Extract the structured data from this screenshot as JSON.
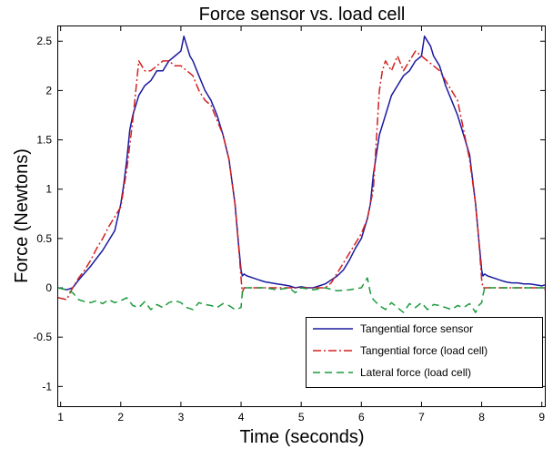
{
  "chart_data": {
    "type": "line",
    "title": "Force sensor vs. load cell",
    "xlabel": "Time (seconds)",
    "ylabel": "Force (Newtons)",
    "xlim": [
      0.96,
      9.05
    ],
    "ylim": [
      -1.2,
      2.65
    ],
    "xticks": [
      1,
      2,
      3,
      4,
      5,
      6,
      7,
      8,
      9
    ],
    "yticks": [
      -1,
      -0.5,
      0,
      0.5,
      1,
      1.5,
      2,
      2.5
    ],
    "ytick_labels": [
      "-1",
      "-0.5",
      "0",
      "0.5",
      "1",
      "1.5",
      "2",
      "2.5"
    ],
    "grid": false,
    "legend_position": "bottom-right",
    "series": [
      {
        "name": "Tangential force sensor",
        "color": "#1a1aa0",
        "style": "solid",
        "x": [
          0.96,
          1.1,
          1.2,
          1.3,
          1.4,
          1.5,
          1.6,
          1.7,
          1.8,
          1.9,
          2.0,
          2.05,
          2.1,
          2.15,
          2.2,
          2.3,
          2.4,
          2.5,
          2.6,
          2.7,
          2.8,
          2.9,
          3.0,
          3.05,
          3.1,
          3.15,
          3.2,
          3.3,
          3.4,
          3.5,
          3.6,
          3.7,
          3.8,
          3.9,
          3.95,
          4.0,
          4.02,
          4.05,
          4.1,
          4.2,
          4.3,
          4.4,
          4.5,
          4.6,
          4.7,
          4.8,
          4.9,
          5.0,
          5.1,
          5.2,
          5.3,
          5.4,
          5.5,
          5.6,
          5.7,
          5.8,
          5.9,
          6.0,
          6.1,
          6.15,
          6.2,
          6.3,
          6.4,
          6.5,
          6.6,
          6.7,
          6.8,
          6.9,
          7.0,
          7.05,
          7.1,
          7.15,
          7.2,
          7.3,
          7.4,
          7.5,
          7.6,
          7.7,
          7.8,
          7.9,
          7.95,
          8.0,
          8.02,
          8.05,
          8.1,
          8.2,
          8.3,
          8.4,
          8.5,
          8.6,
          8.7,
          8.8,
          8.9,
          9.0,
          9.05
        ],
        "y": [
          0.0,
          -0.02,
          0.0,
          0.08,
          0.15,
          0.22,
          0.3,
          0.38,
          0.48,
          0.58,
          0.85,
          1.05,
          1.3,
          1.6,
          1.75,
          1.95,
          2.05,
          2.1,
          2.2,
          2.2,
          2.3,
          2.35,
          2.4,
          2.55,
          2.45,
          2.35,
          2.3,
          2.15,
          2.0,
          1.9,
          1.75,
          1.55,
          1.3,
          0.85,
          0.5,
          0.18,
          0.12,
          0.14,
          0.12,
          0.1,
          0.08,
          0.06,
          0.05,
          0.04,
          0.03,
          0.02,
          0.0,
          0.01,
          0.0,
          0.0,
          0.02,
          0.04,
          0.08,
          0.12,
          0.18,
          0.28,
          0.4,
          0.5,
          0.7,
          0.85,
          1.15,
          1.55,
          1.75,
          1.95,
          2.05,
          2.15,
          2.2,
          2.3,
          2.35,
          2.55,
          2.5,
          2.45,
          2.35,
          2.25,
          2.05,
          1.9,
          1.75,
          1.55,
          1.35,
          0.85,
          0.5,
          0.18,
          0.12,
          0.14,
          0.12,
          0.1,
          0.08,
          0.06,
          0.05,
          0.05,
          0.04,
          0.04,
          0.03,
          0.02,
          0.03
        ]
      },
      {
        "name": "Tangential force (load cell)",
        "color": "#d42020",
        "style": "dashdot",
        "x": [
          0.96,
          1.1,
          1.2,
          1.3,
          1.4,
          1.5,
          1.6,
          1.7,
          1.8,
          1.9,
          2.0,
          2.1,
          2.2,
          2.25,
          2.3,
          2.35,
          2.4,
          2.5,
          2.6,
          2.7,
          2.8,
          2.9,
          3.0,
          3.1,
          3.2,
          3.3,
          3.4,
          3.5,
          3.6,
          3.7,
          3.8,
          3.9,
          3.95,
          4.0,
          4.02,
          4.05,
          4.1,
          4.3,
          4.5,
          4.7,
          4.9,
          5.0,
          5.2,
          5.4,
          5.5,
          5.6,
          5.7,
          5.8,
          5.9,
          6.0,
          6.1,
          6.2,
          6.25,
          6.3,
          6.35,
          6.4,
          6.5,
          6.6,
          6.7,
          6.8,
          6.9,
          7.0,
          7.1,
          7.2,
          7.3,
          7.4,
          7.5,
          7.6,
          7.7,
          7.8,
          7.9,
          7.95,
          8.0,
          8.02,
          8.05,
          8.2,
          8.4,
          8.6,
          8.8,
          9.0,
          9.05
        ],
        "y": [
          -0.1,
          -0.12,
          0.0,
          0.1,
          0.18,
          0.28,
          0.4,
          0.5,
          0.62,
          0.72,
          0.82,
          1.2,
          1.7,
          2.0,
          2.3,
          2.25,
          2.2,
          2.2,
          2.25,
          2.3,
          2.3,
          2.25,
          2.25,
          2.2,
          2.15,
          2.0,
          1.9,
          1.85,
          1.7,
          1.55,
          1.3,
          0.85,
          0.5,
          0.1,
          -0.05,
          0.0,
          0.0,
          0.0,
          0.0,
          0.0,
          0.0,
          0.0,
          0.0,
          0.0,
          0.05,
          0.15,
          0.25,
          0.35,
          0.45,
          0.55,
          0.7,
          1.0,
          1.5,
          2.0,
          2.2,
          2.3,
          2.2,
          2.35,
          2.2,
          2.3,
          2.4,
          2.35,
          2.3,
          2.25,
          2.2,
          2.1,
          2.0,
          1.9,
          1.6,
          1.3,
          0.85,
          0.5,
          0.08,
          0.0,
          0.0,
          0.0,
          0.0,
          0.0,
          0.0,
          0.0,
          -0.02
        ]
      },
      {
        "name": "Lateral force (load cell)",
        "color": "#1a9a3a",
        "style": "dashed",
        "x": [
          0.96,
          1.1,
          1.2,
          1.3,
          1.4,
          1.5,
          1.6,
          1.7,
          1.8,
          1.9,
          2.0,
          2.1,
          2.2,
          2.3,
          2.4,
          2.5,
          2.6,
          2.7,
          2.8,
          2.9,
          3.0,
          3.1,
          3.2,
          3.3,
          3.4,
          3.5,
          3.6,
          3.7,
          3.8,
          3.9,
          4.0,
          4.02,
          4.05,
          4.2,
          4.4,
          4.6,
          4.8,
          4.9,
          5.0,
          5.2,
          5.4,
          5.6,
          5.8,
          6.0,
          6.1,
          6.15,
          6.2,
          6.3,
          6.4,
          6.5,
          6.6,
          6.7,
          6.8,
          6.9,
          7.0,
          7.1,
          7.2,
          7.3,
          7.4,
          7.5,
          7.6,
          7.7,
          7.8,
          7.9,
          7.95,
          8.0,
          8.02,
          8.05,
          8.2,
          8.4,
          8.6,
          8.8,
          9.0,
          9.05
        ],
        "y": [
          0.0,
          -0.02,
          -0.05,
          -0.12,
          -0.14,
          -0.15,
          -0.13,
          -0.16,
          -0.12,
          -0.15,
          -0.13,
          -0.1,
          -0.18,
          -0.2,
          -0.14,
          -0.22,
          -0.17,
          -0.2,
          -0.15,
          -0.13,
          -0.15,
          -0.2,
          -0.22,
          -0.15,
          -0.17,
          -0.18,
          -0.2,
          -0.16,
          -0.18,
          -0.22,
          -0.2,
          -0.05,
          0.0,
          0.0,
          0.0,
          -0.02,
          0.0,
          -0.05,
          0.0,
          -0.02,
          0.0,
          -0.03,
          -0.02,
          0.0,
          0.1,
          -0.05,
          -0.12,
          -0.18,
          -0.22,
          -0.15,
          -0.2,
          -0.25,
          -0.16,
          -0.2,
          -0.15,
          -0.22,
          -0.17,
          -0.18,
          -0.2,
          -0.22,
          -0.18,
          -0.2,
          -0.16,
          -0.25,
          -0.18,
          -0.15,
          -0.08,
          0.0,
          0.0,
          0.0,
          0.0,
          0.0,
          0.0,
          0.0
        ]
      }
    ]
  }
}
